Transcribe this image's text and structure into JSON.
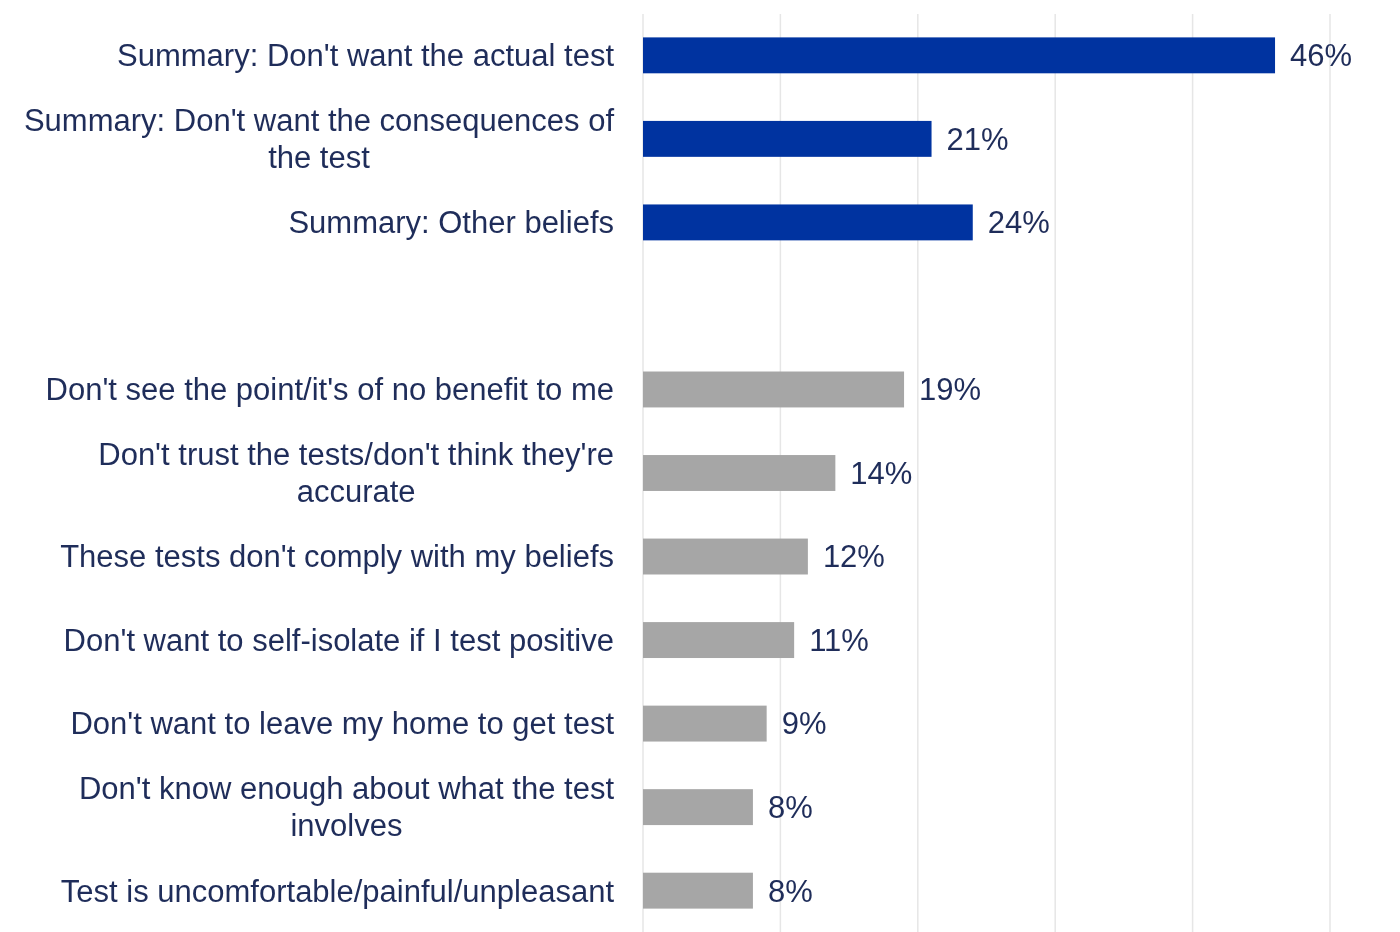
{
  "chart_data": {
    "type": "bar",
    "orientation": "horizontal",
    "categories": [
      "Summary: Don't want the actual test",
      "Summary: Don't want the consequences of the test",
      "Summary: Other beliefs",
      null,
      "Don't see the point/it's of no benefit to me",
      "Don't trust the tests/don't think they're accurate",
      "These tests don't comply with my beliefs",
      "Don't want to self-isolate if I test positive",
      "Don't want to leave my home to get test",
      "Don't know enough about what the test involves",
      "Test is uncomfortable/painful/unpleasant"
    ],
    "values": [
      46,
      21,
      24,
      null,
      19,
      14,
      12,
      11,
      9,
      8,
      8
    ],
    "value_labels": [
      "46%",
      "21%",
      "24%",
      null,
      "19%",
      "14%",
      "12%",
      "11%",
      "9%",
      "8%",
      "8%"
    ],
    "colors": [
      "#0033a0",
      "#0033a0",
      "#0033a0",
      null,
      "#a6a6a6",
      "#a6a6a6",
      "#a6a6a6",
      "#a6a6a6",
      "#a6a6a6",
      "#a6a6a6",
      "#a6a6a6"
    ],
    "xlim": [
      0,
      50
    ],
    "xticks": [
      {
        "value": 0,
        "label": null
      },
      {
        "value": 10,
        "label": null
      },
      {
        "value": 20,
        "label": null
      },
      {
        "value": 30,
        "label": null
      },
      {
        "value": 40,
        "label": null
      },
      {
        "value": 50,
        "label": null
      }
    ],
    "grid": "x",
    "tick_labels": "y"
  }
}
